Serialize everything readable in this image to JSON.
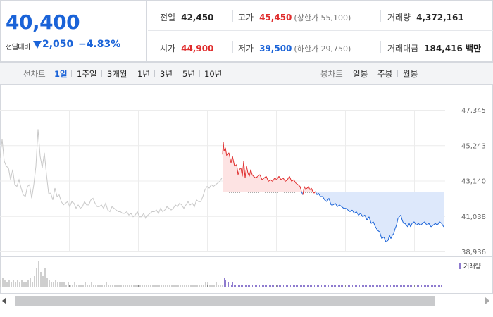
{
  "summary": {
    "current_price": "40,400",
    "change_label": "전일대비",
    "change_value": "2,050",
    "change_rate": "−4.83%",
    "direction": "down",
    "stats": {
      "prev_close": {
        "label": "전일",
        "value": "42,450"
      },
      "high": {
        "label": "고가",
        "value": "45,450",
        "sub": "(상한가 55,100)"
      },
      "volume": {
        "label": "거래량",
        "value": "4,372,161"
      },
      "open": {
        "label": "시가",
        "value": "44,900"
      },
      "low": {
        "label": "저가",
        "value": "39,500",
        "sub": "(하한가 29,750)"
      },
      "trade_amount": {
        "label": "거래대금",
        "value": "184,416 백만"
      }
    }
  },
  "toolbar": {
    "line_chart_label": "선차트",
    "line_periods": [
      "1일",
      "1주일",
      "3개월",
      "1년",
      "3년",
      "5년",
      "10년"
    ],
    "active_period": "1일",
    "candle_chart_label": "봉차트",
    "candle_periods": [
      "일봉",
      "주봉",
      "월봉"
    ]
  },
  "colors": {
    "up": "#e02d2d",
    "down": "#1a63d8",
    "volume": "#8e7bcf",
    "history": "#c8c8c8"
  },
  "chart_data": {
    "type": "line",
    "y_ticks": [
      "47,345",
      "45,243",
      "43,140",
      "41,038",
      "38,936"
    ],
    "ylim": [
      38936,
      47345
    ],
    "reference_price": 42450,
    "legend": "거래량",
    "history": {
      "x": [
        0,
        3,
        6,
        9,
        12,
        15,
        18,
        21,
        24,
        27,
        30,
        33,
        36,
        39,
        42,
        45,
        48,
        51,
        54,
        57,
        60,
        63,
        66,
        69,
        72,
        75,
        78,
        81,
        84,
        87,
        90,
        93,
        96,
        99,
        102,
        105,
        108,
        111,
        114,
        117,
        120,
        123,
        126,
        129,
        132,
        135,
        138,
        141,
        144,
        147,
        150,
        153,
        156,
        159,
        162,
        165,
        168,
        171,
        174,
        177,
        180,
        183,
        186,
        189,
        192,
        195,
        198,
        201,
        204,
        207,
        210,
        213,
        216,
        219,
        222,
        225,
        228,
        231,
        234,
        237,
        240,
        243,
        246,
        249,
        252,
        255,
        258,
        261,
        264,
        267,
        270,
        273,
        276,
        279,
        282,
        285,
        288,
        291,
        294,
        297,
        300,
        303,
        306,
        309,
        312,
        315
      ],
      "y": [
        44500,
        45600,
        44300,
        44000,
        43900,
        43200,
        43800,
        42900,
        42800,
        43200,
        42700,
        42300,
        42200,
        42800,
        42900,
        42100,
        42900,
        44000,
        46200,
        44600,
        43900,
        44800,
        43500,
        42400,
        42400,
        42000,
        42700,
        42200,
        42300,
        41900,
        41700,
        41800,
        41900,
        41600,
        41900,
        41800,
        41500,
        41700,
        41500,
        41600,
        41900,
        41700,
        41700,
        42000,
        42100,
        41800,
        41600,
        41600,
        41700,
        41500,
        41800,
        41400,
        41300,
        41600,
        41500,
        41400,
        41300,
        41300,
        41200,
        41200,
        41300,
        41100,
        41200,
        41000,
        41100,
        41300,
        41000,
        41000,
        41200,
        40900,
        41100,
        41200,
        41300,
        41300,
        41400,
        41200,
        41500,
        41300,
        41400,
        41600,
        41500,
        41400,
        41500,
        41700,
        41600,
        41800,
        41700,
        41500,
        41700,
        41900,
        41700,
        41800,
        41600,
        42000,
        41900,
        41900,
        42200,
        42600,
        42800,
        42700,
        42900,
        42800,
        42900,
        43000,
        43100,
        43300
      ]
    },
    "today": {
      "x": [
        316,
        317,
        318,
        320,
        322,
        325,
        328,
        330,
        333,
        336,
        338,
        340,
        342,
        344,
        346,
        348,
        350,
        352,
        354,
        356,
        358,
        360,
        363,
        366,
        369,
        372,
        375,
        378,
        381,
        384,
        387,
        390,
        393,
        396,
        399,
        402,
        405,
        408,
        411,
        414,
        417,
        420,
        423,
        426,
        428,
        430,
        432,
        434,
        436,
        438,
        440,
        442,
        444,
        446,
        448,
        450,
        452,
        455,
        458,
        461,
        464,
        467,
        470,
        473,
        476,
        479,
        482,
        485,
        488,
        491,
        494,
        497,
        500,
        503,
        506,
        509,
        512,
        515,
        518,
        521,
        524,
        527,
        530,
        533,
        536,
        539,
        542,
        545,
        548,
        551,
        553,
        555,
        557,
        559,
        561,
        563,
        565,
        567,
        569,
        571,
        573,
        575,
        577,
        579,
        581,
        583,
        585,
        588,
        591,
        594,
        597,
        600,
        603,
        606,
        609,
        612,
        615,
        618,
        621,
        624,
        627,
        630
      ],
      "y": [
        44700,
        45450,
        44900,
        45100,
        44600,
        44800,
        44200,
        44600,
        44000,
        44100,
        43500,
        43800,
        43900,
        43400,
        44300,
        43300,
        44000,
        43600,
        43400,
        43800,
        43500,
        43400,
        43300,
        43400,
        43500,
        43200,
        43300,
        43400,
        43100,
        43200,
        43100,
        43300,
        43200,
        43400,
        43200,
        43300,
        43100,
        43200,
        43400,
        43100,
        43200,
        43000,
        42900,
        42800,
        42500,
        42300,
        42800,
        42600,
        42700,
        42800,
        42600,
        42700,
        42500,
        42400,
        42500,
        42300,
        42400,
        42200,
        42200,
        42000,
        41900,
        42100,
        41700,
        41700,
        41800,
        41600,
        41700,
        41600,
        41500,
        41500,
        41400,
        41300,
        41400,
        41200,
        41300,
        41100,
        41200,
        41000,
        41100,
        40800,
        41000,
        40600,
        40700,
        40400,
        40200,
        40100,
        39700,
        39800,
        39500,
        39600,
        39900,
        39700,
        39900,
        40000,
        40300,
        40500,
        40900,
        41000,
        41100,
        40800,
        40600,
        40600,
        40500,
        40400,
        40600,
        40400,
        40600,
        40700,
        40500,
        40600,
        40500,
        40600,
        40700,
        40500,
        40600,
        40400,
        40500,
        40600,
        40500,
        40700,
        40600,
        40400
      ]
    },
    "history_volume": [
      3,
      4,
      3,
      2,
      3,
      2,
      3,
      2,
      3,
      2,
      3,
      2,
      2,
      3,
      4,
      2,
      5,
      9,
      12,
      7,
      5,
      9,
      4,
      3,
      2,
      2,
      3,
      2,
      2,
      2,
      2,
      1,
      2,
      1,
      1,
      2,
      1,
      1,
      1,
      1,
      2,
      1,
      1,
      2,
      1,
      1,
      1,
      1,
      1,
      1,
      2,
      1,
      1,
      1,
      1,
      1,
      1,
      1,
      1,
      1,
      1,
      1,
      1,
      1,
      1,
      1,
      1,
      1,
      1,
      1,
      1,
      1,
      1,
      1,
      1,
      1,
      1,
      1,
      1,
      1,
      1,
      1,
      1,
      1,
      1,
      1,
      1,
      1,
      1,
      1,
      1,
      1,
      1,
      1,
      1,
      1,
      1,
      2,
      2,
      1,
      1,
      1,
      2,
      1,
      1,
      1
    ],
    "today_volume": [
      2,
      4,
      3,
      2,
      2,
      1,
      1,
      2,
      1,
      1,
      1,
      1,
      1,
      1,
      1,
      1,
      1,
      1,
      1,
      1,
      1,
      1,
      1,
      1,
      1,
      1,
      1,
      1,
      1,
      1,
      1,
      1,
      1,
      1,
      1,
      1,
      1,
      1,
      1,
      1,
      1,
      1,
      1,
      1,
      1,
      1,
      1,
      1,
      1,
      1,
      1,
      1,
      1,
      1,
      1,
      1,
      1,
      1,
      1,
      1,
      1,
      1,
      1,
      1,
      1,
      1,
      1,
      1,
      1,
      1,
      1,
      1,
      1,
      1,
      1,
      1,
      1,
      1,
      1,
      1,
      1,
      1,
      1,
      1,
      1,
      1,
      1,
      1,
      1,
      1,
      1,
      1,
      1,
      1,
      1,
      1,
      1,
      1,
      1,
      1,
      1,
      1,
      1,
      1,
      1,
      1,
      1,
      1,
      1,
      1,
      1,
      1,
      1,
      1,
      1,
      1,
      1,
      1,
      1,
      1,
      1,
      1,
      1,
      1,
      1,
      1,
      1,
      1,
      1,
      1,
      1,
      1,
      1,
      1,
      1,
      1,
      1,
      1,
      1,
      1,
      1,
      1,
      1,
      1,
      1,
      1,
      1,
      1,
      1,
      1,
      1,
      1,
      1,
      1,
      1,
      1
    ]
  }
}
